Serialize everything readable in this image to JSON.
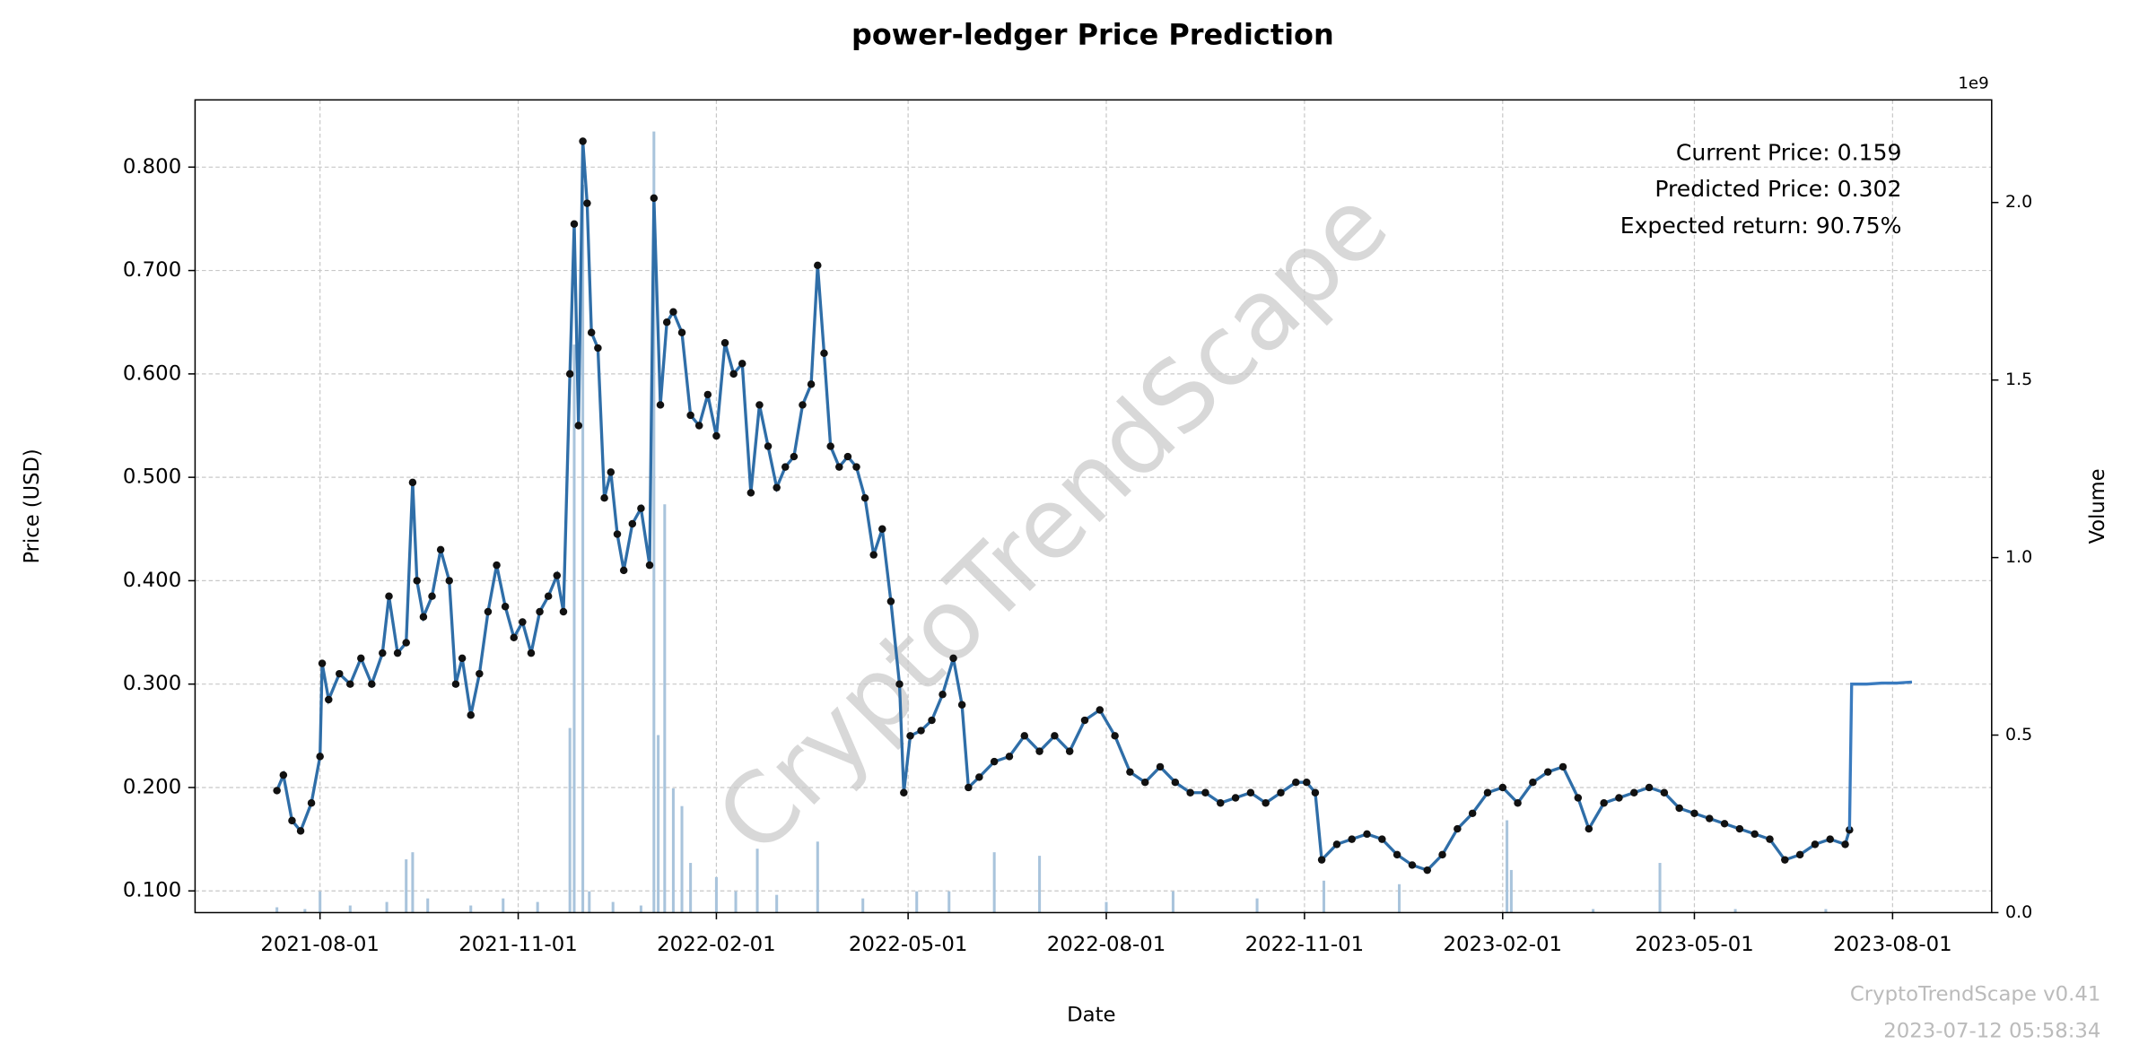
{
  "chart_data": {
    "type": "line",
    "title": "power-ledger Price Prediction",
    "xlabel": "Date",
    "ylabel": "Price (USD)",
    "y2label": "Volume",
    "y2_offset_label": "1e9",
    "annotations": [
      "Current Price: 0.159",
      "Predicted Price: 0.302",
      "Expected return: 90.75%"
    ],
    "watermark": "CryptoTrendScape",
    "footer": [
      "CryptoTrendScape v0.41",
      "2023-07-12 05:58:34"
    ],
    "grid": true,
    "xlim": [
      "2021-06-04",
      "2023-09-16"
    ],
    "xticks": [
      "2021-08-01",
      "2021-11-01",
      "2022-02-01",
      "2022-05-01",
      "2022-08-01",
      "2022-11-01",
      "2023-02-01",
      "2023-05-01",
      "2023-08-01"
    ],
    "ylim": [
      0.079,
      0.865
    ],
    "yticks": [
      {
        "value": 0.1,
        "label": "0.100"
      },
      {
        "value": 0.2,
        "label": "0.200"
      },
      {
        "value": 0.3,
        "label": "0.300"
      },
      {
        "value": 0.4,
        "label": "0.400"
      },
      {
        "value": 0.5,
        "label": "0.500"
      },
      {
        "value": 0.6,
        "label": "0.600"
      },
      {
        "value": 0.7,
        "label": "0.700"
      },
      {
        "value": 0.8,
        "label": "0.800"
      }
    ],
    "y2lim": [
      0,
      2289000000
    ],
    "y2ticks": [
      {
        "value": 0,
        "label": "0.0"
      },
      {
        "value": 500000000,
        "label": "0.5"
      },
      {
        "value": 1000000000,
        "label": "1.0"
      },
      {
        "value": 1500000000,
        "label": "1.5"
      },
      {
        "value": 2000000000,
        "label": "2.0"
      }
    ],
    "series": [
      {
        "type": "bar",
        "axis": "y2",
        "color": "#a9c4dc",
        "x": [
          "2021-07-12",
          "2021-07-25",
          "2021-08-01",
          "2021-08-15",
          "2021-09-01",
          "2021-09-10",
          "2021-09-13",
          "2021-09-20",
          "2021-10-10",
          "2021-10-25",
          "2021-11-10",
          "2021-11-25",
          "2021-11-27",
          "2021-12-01",
          "2021-12-04",
          "2021-12-15",
          "2021-12-28",
          "2022-01-03",
          "2022-01-05",
          "2022-01-08",
          "2022-01-12",
          "2022-01-16",
          "2022-01-20",
          "2022-02-01",
          "2022-02-10",
          "2022-02-20",
          "2022-03-01",
          "2022-03-20",
          "2022-04-10",
          "2022-05-05",
          "2022-05-20",
          "2022-06-10",
          "2022-07-01",
          "2022-08-01",
          "2022-09-01",
          "2022-10-10",
          "2022-11-10",
          "2022-12-15",
          "2023-02-03",
          "2023-02-05",
          "2023-03-15",
          "2023-04-15",
          "2023-05-20",
          "2023-07-01"
        ],
        "values": [
          15000000,
          10000000,
          60000000,
          20000000,
          30000000,
          150000000,
          170000000,
          40000000,
          20000000,
          40000000,
          30000000,
          520000000,
          1600000000,
          2050000000,
          60000000,
          30000000,
          20000000,
          2200000000,
          500000000,
          1150000000,
          350000000,
          300000000,
          140000000,
          100000000,
          60000000,
          180000000,
          50000000,
          200000000,
          40000000,
          60000000,
          60000000,
          170000000,
          160000000,
          30000000,
          60000000,
          40000000,
          90000000,
          80000000,
          260000000,
          120000000,
          10000000,
          140000000,
          10000000,
          10000000
        ]
      },
      {
        "color": "#2f6ea8",
        "x": [
          "2021-07-12",
          "2021-07-15",
          "2021-07-19",
          "2021-07-23",
          "2021-07-28",
          "2021-08-01",
          "2021-08-02",
          "2021-08-05",
          "2021-08-10",
          "2021-08-15",
          "2021-08-20",
          "2021-08-25",
          "2021-08-30",
          "2021-09-02",
          "2021-09-06",
          "2021-09-10",
          "2021-09-13",
          "2021-09-15",
          "2021-09-18",
          "2021-09-22",
          "2021-09-26",
          "2021-09-30",
          "2021-10-03",
          "2021-10-06",
          "2021-10-10",
          "2021-10-14",
          "2021-10-18",
          "2021-10-22",
          "2021-10-26",
          "2021-10-30",
          "2021-11-03",
          "2021-11-07",
          "2021-11-11",
          "2021-11-15",
          "2021-11-19",
          "2021-11-22",
          "2021-11-25",
          "2021-11-27",
          "2021-11-29",
          "2021-12-01",
          "2021-12-03",
          "2021-12-05",
          "2021-12-08",
          "2021-12-11",
          "2021-12-14",
          "2021-12-17",
          "2021-12-20",
          "2021-12-24",
          "2021-12-28",
          "2022-01-01",
          "2022-01-03",
          "2022-01-06",
          "2022-01-09",
          "2022-01-12",
          "2022-01-16",
          "2022-01-20",
          "2022-01-24",
          "2022-01-28",
          "2022-02-01",
          "2022-02-05",
          "2022-02-09",
          "2022-02-13",
          "2022-02-17",
          "2022-02-21",
          "2022-02-25",
          "2022-03-01",
          "2022-03-05",
          "2022-03-09",
          "2022-03-13",
          "2022-03-17",
          "2022-03-20",
          "2022-03-23",
          "2022-03-26",
          "2022-03-30",
          "2022-04-03",
          "2022-04-07",
          "2022-04-11",
          "2022-04-15",
          "2022-04-19",
          "2022-04-23",
          "2022-04-27",
          "2022-04-29",
          "2022-05-02",
          "2022-05-07",
          "2022-05-12",
          "2022-05-17",
          "2022-05-22",
          "2022-05-26",
          "2022-05-29",
          "2022-06-03",
          "2022-06-10",
          "2022-06-17",
          "2022-06-24",
          "2022-07-01",
          "2022-07-08",
          "2022-07-15",
          "2022-07-22",
          "2022-07-29",
          "2022-08-05",
          "2022-08-12",
          "2022-08-19",
          "2022-08-26",
          "2022-09-02",
          "2022-09-09",
          "2022-09-16",
          "2022-09-23",
          "2022-09-30",
          "2022-10-07",
          "2022-10-14",
          "2022-10-21",
          "2022-10-28",
          "2022-11-02",
          "2022-11-06",
          "2022-11-09",
          "2022-11-16",
          "2022-11-23",
          "2022-11-30",
          "2022-12-07",
          "2022-12-14",
          "2022-12-21",
          "2022-12-28",
          "2023-01-04",
          "2023-01-11",
          "2023-01-18",
          "2023-01-25",
          "2023-02-01",
          "2023-02-08",
          "2023-02-15",
          "2023-02-22",
          "2023-03-01",
          "2023-03-08",
          "2023-03-13",
          "2023-03-20",
          "2023-03-27",
          "2023-04-03",
          "2023-04-10",
          "2023-04-17",
          "2023-04-24",
          "2023-05-01",
          "2023-05-08",
          "2023-05-15",
          "2023-05-22",
          "2023-05-29",
          "2023-06-05",
          "2023-06-12",
          "2023-06-19",
          "2023-06-26",
          "2023-07-03",
          "2023-07-10",
          "2023-07-12"
        ],
        "values": [
          0.197,
          0.212,
          0.168,
          0.158,
          0.185,
          0.23,
          0.32,
          0.285,
          0.31,
          0.3,
          0.325,
          0.3,
          0.33,
          0.385,
          0.33,
          0.34,
          0.495,
          0.4,
          0.365,
          0.385,
          0.43,
          0.4,
          0.3,
          0.325,
          0.27,
          0.31,
          0.37,
          0.415,
          0.375,
          0.345,
          0.36,
          0.33,
          0.37,
          0.385,
          0.405,
          0.37,
          0.6,
          0.745,
          0.55,
          0.825,
          0.765,
          0.64,
          0.625,
          0.48,
          0.505,
          0.445,
          0.41,
          0.455,
          0.47,
          0.415,
          0.77,
          0.57,
          0.65,
          0.66,
          0.64,
          0.56,
          0.55,
          0.58,
          0.54,
          0.63,
          0.6,
          0.61,
          0.485,
          0.57,
          0.53,
          0.49,
          0.51,
          0.52,
          0.57,
          0.59,
          0.705,
          0.62,
          0.53,
          0.51,
          0.52,
          0.51,
          0.48,
          0.425,
          0.45,
          0.38,
          0.3,
          0.195,
          0.25,
          0.255,
          0.265,
          0.29,
          0.325,
          0.28,
          0.2,
          0.21,
          0.225,
          0.23,
          0.25,
          0.235,
          0.25,
          0.235,
          0.265,
          0.275,
          0.25,
          0.215,
          0.205,
          0.22,
          0.205,
          0.195,
          0.195,
          0.185,
          0.19,
          0.195,
          0.185,
          0.195,
          0.205,
          0.205,
          0.195,
          0.13,
          0.145,
          0.15,
          0.155,
          0.15,
          0.135,
          0.125,
          0.12,
          0.135,
          0.16,
          0.175,
          0.195,
          0.2,
          0.185,
          0.205,
          0.215,
          0.22,
          0.19,
          0.16,
          0.185,
          0.19,
          0.195,
          0.2,
          0.195,
          0.18,
          0.175,
          0.17,
          0.165,
          0.16,
          0.155,
          0.15,
          0.13,
          0.135,
          0.145,
          0.15,
          0.145,
          0.159
        ],
        "marker_color": "#111111"
      },
      {
        "color": "#3a7bbf",
        "x": [
          "2023-07-12",
          "2023-07-13",
          "2023-07-20",
          "2023-07-27",
          "2023-08-03",
          "2023-08-10"
        ],
        "values": [
          0.159,
          0.3,
          0.3,
          0.301,
          0.301,
          0.302
        ]
      }
    ]
  }
}
